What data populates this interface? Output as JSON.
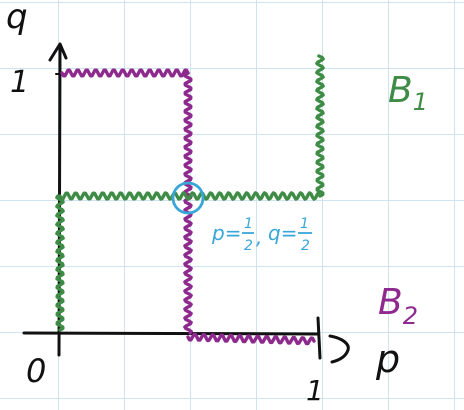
{
  "colors": {
    "b1": "#3e8c46",
    "b2": "#8e2a8e",
    "highlight": "#3aa6d8",
    "ink": "#111111",
    "grid": "#cfe3f3"
  },
  "labels": {
    "y_axis": "q",
    "x_axis": "p",
    "origin": "0",
    "y_tick": "1",
    "x_tick": "1",
    "b1": "B",
    "b1_sub": "1",
    "b2": "B",
    "b2_sub": "2"
  },
  "intersection": {
    "p_label": "p=",
    "p_num": "1",
    "p_den": "2",
    "sep": ",",
    "q_label": "q=",
    "q_num": "1",
    "q_den": "2"
  }
}
